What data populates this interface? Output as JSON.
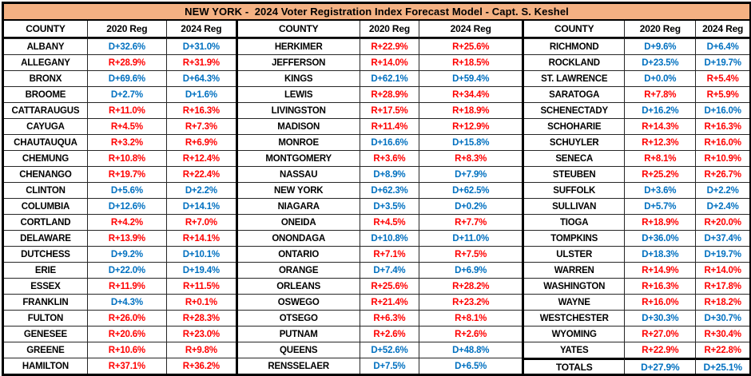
{
  "title": "NEW YORK -  2024 Voter Registration Index Forecast Model - Capt. S. Keshel",
  "colors": {
    "dem": "#0070C0",
    "rep": "#FF0000",
    "title_bg": "#F4B183"
  },
  "chart_data": {
    "type": "table",
    "title": "NEW YORK -  2024 Voter Registration Index Forecast Model - Capt. S. Keshel",
    "columns": [
      "COUNTY",
      "2020 Reg",
      "2024 Reg"
    ],
    "groups": [
      {
        "rows": [
          [
            "ALBANY",
            "D+32.6%",
            "D+31.0%"
          ],
          [
            "ALLEGANY",
            "R+28.9%",
            "R+31.9%"
          ],
          [
            "BRONX",
            "D+69.6%",
            "D+64.3%"
          ],
          [
            "BROOME",
            "D+2.7%",
            "D+1.6%"
          ],
          [
            "CATTARAUGUS",
            "R+11.0%",
            "R+16.3%"
          ],
          [
            "CAYUGA",
            "R+4.5%",
            "R+7.3%"
          ],
          [
            "CHAUTAUQUA",
            "R+3.2%",
            "R+6.9%"
          ],
          [
            "CHEMUNG",
            "R+10.8%",
            "R+12.4%"
          ],
          [
            "CHENANGO",
            "R+19.7%",
            "R+22.4%"
          ],
          [
            "CLINTON",
            "D+5.6%",
            "D+2.2%"
          ],
          [
            "COLUMBIA",
            "D+12.6%",
            "D+14.1%"
          ],
          [
            "CORTLAND",
            "R+4.2%",
            "R+7.0%"
          ],
          [
            "DELAWARE",
            "R+13.9%",
            "R+14.1%"
          ],
          [
            "DUTCHESS",
            "D+9.2%",
            "D+10.1%"
          ],
          [
            "ERIE",
            "D+22.0%",
            "D+19.4%"
          ],
          [
            "ESSEX",
            "R+11.9%",
            "R+11.5%"
          ],
          [
            "FRANKLIN",
            "D+4.3%",
            "R+0.1%"
          ],
          [
            "FULTON",
            "R+26.0%",
            "R+28.3%"
          ],
          [
            "GENESEE",
            "R+20.6%",
            "R+23.0%"
          ],
          [
            "GREENE",
            "R+10.6%",
            "R+9.8%"
          ],
          [
            "HAMILTON",
            "R+37.1%",
            "R+36.2%"
          ]
        ]
      },
      {
        "rows": [
          [
            "HERKIMER",
            "R+22.9%",
            "R+25.6%"
          ],
          [
            "JEFFERSON",
            "R+14.0%",
            "R+18.5%"
          ],
          [
            "KINGS",
            "D+62.1%",
            "D+59.4%"
          ],
          [
            "LEWIS",
            "R+28.9%",
            "R+34.4%"
          ],
          [
            "LIVINGSTON",
            "R+17.5%",
            "R+18.9%"
          ],
          [
            "MADISON",
            "R+11.4%",
            "R+12.9%"
          ],
          [
            "MONROE",
            "D+16.6%",
            "D+15.8%"
          ],
          [
            "MONTGOMERY",
            "R+3.6%",
            "R+8.3%"
          ],
          [
            "NASSAU",
            "D+8.9%",
            "D+7.9%"
          ],
          [
            "NEW YORK",
            "D+62.3%",
            "D+62.5%"
          ],
          [
            "NIAGARA",
            "D+3.5%",
            "D+0.2%"
          ],
          [
            "ONEIDA",
            "R+4.5%",
            "R+7.7%"
          ],
          [
            "ONONDAGA",
            "D+10.8%",
            "D+11.0%"
          ],
          [
            "ONTARIO",
            "R+7.1%",
            "R+7.5%"
          ],
          [
            "ORANGE",
            "D+7.4%",
            "D+6.9%"
          ],
          [
            "ORLEANS",
            "R+25.6%",
            "R+28.2%"
          ],
          [
            "OSWEGO",
            "R+21.4%",
            "R+23.2%"
          ],
          [
            "OTSEGO",
            "R+6.3%",
            "R+8.1%"
          ],
          [
            "PUTNAM",
            "R+2.6%",
            "R+2.6%"
          ],
          [
            "QUEENS",
            "D+52.6%",
            "D+48.8%"
          ],
          [
            "RENSSELAER",
            "D+7.5%",
            "D+6.5%"
          ]
        ]
      },
      {
        "rows": [
          [
            "RICHMOND",
            "D+9.6%",
            "D+6.4%"
          ],
          [
            "ROCKLAND",
            "D+23.5%",
            "D+19.7%"
          ],
          [
            "ST. LAWRENCE",
            "D+0.0%",
            "R+5.4%"
          ],
          [
            "SARATOGA",
            "R+7.8%",
            "R+5.9%"
          ],
          [
            "SCHENECTADY",
            "D+16.2%",
            "D+16.0%"
          ],
          [
            "SCHOHARIE",
            "R+14.3%",
            "R+16.3%"
          ],
          [
            "SCHUYLER",
            "R+12.3%",
            "R+16.0%"
          ],
          [
            "SENECA",
            "R+8.1%",
            "R+10.9%"
          ],
          [
            "STEUBEN",
            "R+25.2%",
            "R+26.7%"
          ],
          [
            "SUFFOLK",
            "D+3.6%",
            "D+2.2%"
          ],
          [
            "SULLIVAN",
            "D+5.7%",
            "D+2.4%"
          ],
          [
            "TIOGA",
            "R+18.9%",
            "R+20.0%"
          ],
          [
            "TOMPKINS",
            "D+36.0%",
            "D+37.4%"
          ],
          [
            "ULSTER",
            "D+18.3%",
            "D+19.7%"
          ],
          [
            "WARREN",
            "R+14.9%",
            "R+14.0%"
          ],
          [
            "WASHINGTON",
            "R+16.3%",
            "R+17.8%"
          ],
          [
            "WAYNE",
            "R+16.0%",
            "R+18.2%"
          ],
          [
            "WESTCHESTER",
            "D+30.3%",
            "D+30.7%"
          ],
          [
            "WYOMING",
            "R+27.0%",
            "R+30.4%"
          ],
          [
            "YATES",
            "R+22.9%",
            "R+22.8%"
          ],
          [
            "TOTALS",
            "D+27.9%",
            "D+25.1%"
          ]
        ]
      }
    ]
  }
}
